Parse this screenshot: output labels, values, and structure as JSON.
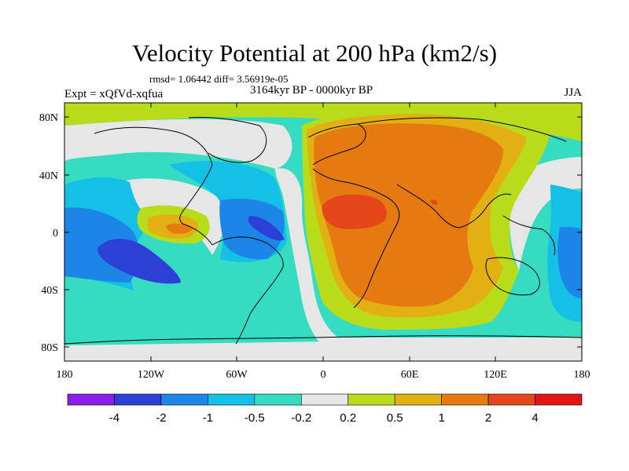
{
  "title": "Velocity Potential at 200 hPa (km2/s)",
  "stats": "rmsd= 1.06442 diff= 3.56919e-05",
  "period": "3164kyr BP - 0000kyr BP",
  "experiment": "Expt = xQfVd-xqfua",
  "season": "JJA",
  "y_axis_labels": [
    "80N",
    "40N",
    "0",
    "40S",
    "80S"
  ],
  "x_axis_labels": [
    "180",
    "120W",
    "60W",
    "0",
    "60E",
    "120E",
    "180"
  ],
  "colorbar": {
    "labels": [
      "-4",
      "-2",
      "-1",
      "-0.5",
      "-0.2",
      "0.2",
      "0.5",
      "1",
      "2",
      "4"
    ],
    "colors": [
      "#8a1ee6",
      "#2c3fd6",
      "#1c86e8",
      "#14c0e6",
      "#35dcc2",
      "#e6e6e6",
      "#b8dc1a",
      "#e2b012",
      "#e47a10",
      "#e5461a",
      "#e21414"
    ]
  },
  "palette": {
    "deep_blue": "#2c3fd6",
    "blue": "#1c86e8",
    "cyan": "#14c0e6",
    "teal": "#35dcc2",
    "neutral": "#e6e6e6",
    "yellow_green": "#b8dc1a",
    "gold": "#e2b012",
    "orange": "#e47a10",
    "red_orange": "#e5461a"
  }
}
